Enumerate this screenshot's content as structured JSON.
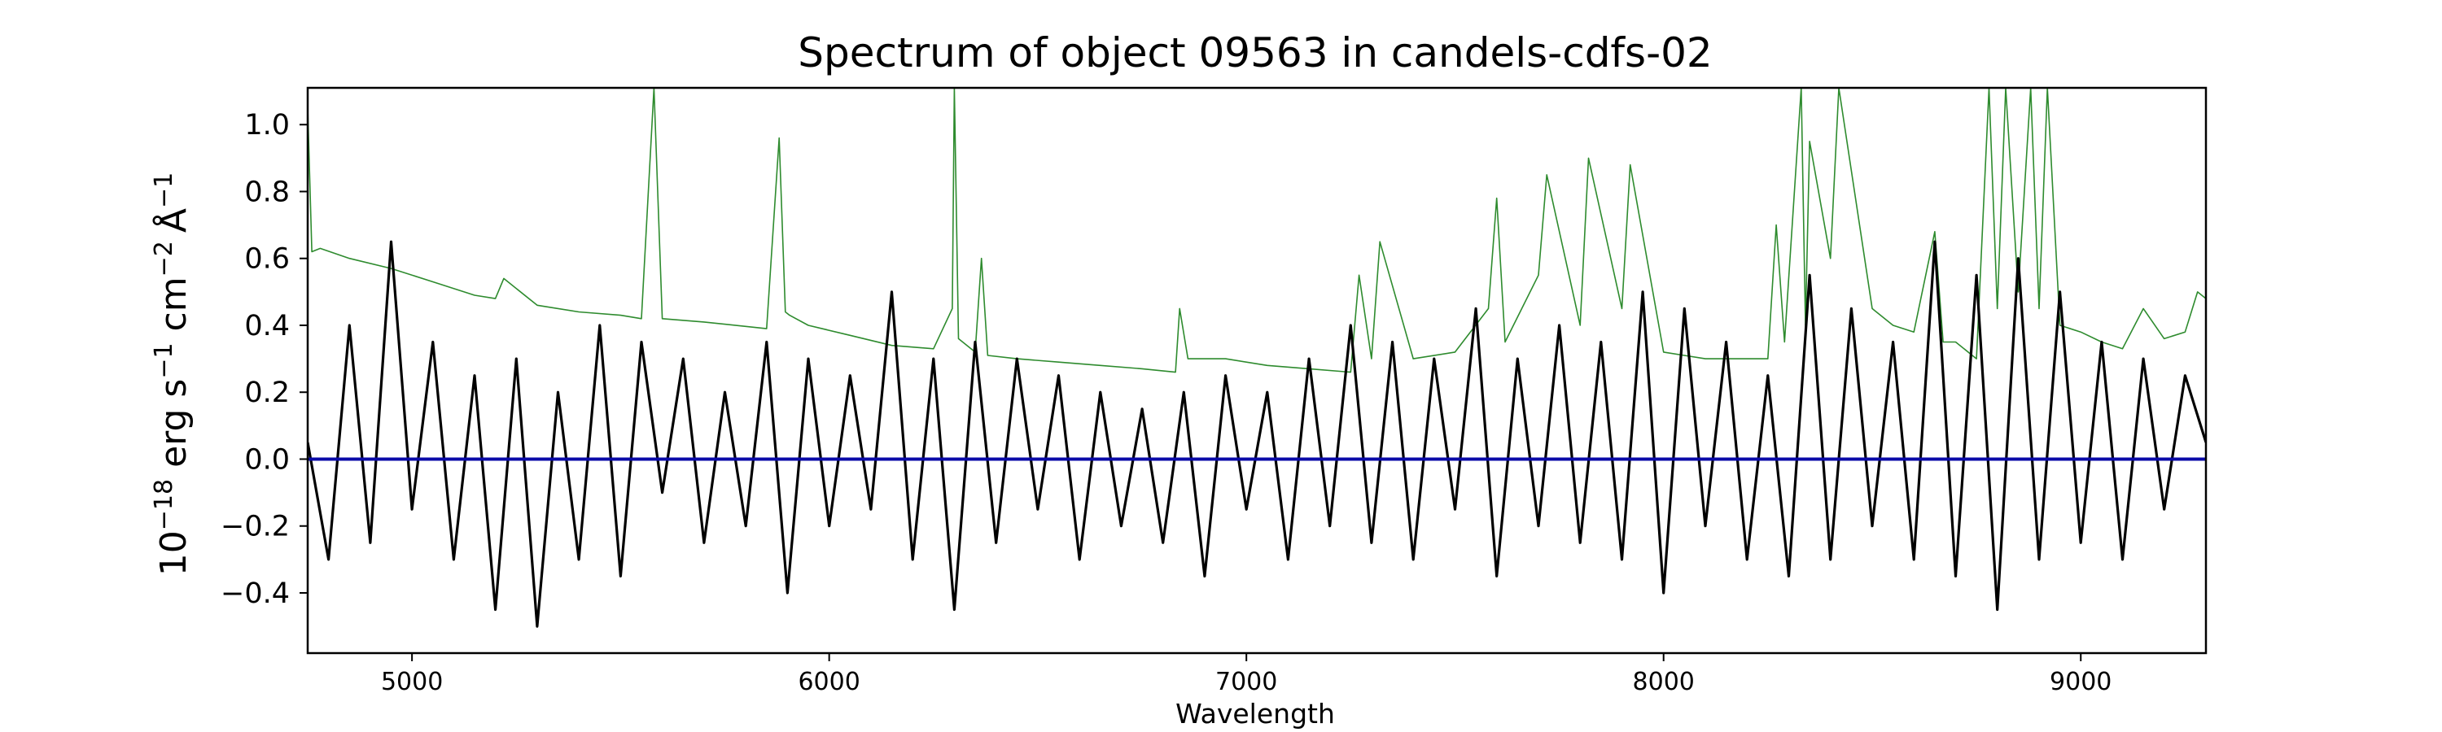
{
  "chart_data": {
    "type": "line",
    "title": "Spectrum of object 09563 in candels-cdfs-02",
    "xlabel": "Wavelength",
    "ylabel": {
      "base": "10",
      "exp": "−18",
      "unit1": "erg s",
      "unit1_exp": "−1",
      "unit2": "cm",
      "unit2_exp": "−2",
      "unit3": "Å",
      "unit3_exp": "−1"
    },
    "xlim": [
      4750,
      9300
    ],
    "ylim": [
      -0.58,
      1.11
    ],
    "xticks": [
      5000,
      6000,
      7000,
      8000,
      9000
    ],
    "xtick_labels": [
      "5000",
      "6000",
      "7000",
      "8000",
      "9000"
    ],
    "yticks": [
      -0.4,
      -0.2,
      0.0,
      0.2,
      0.4,
      0.6,
      0.8,
      1.0
    ],
    "ytick_labels": [
      "−0.4",
      "−0.2",
      "0.0",
      "0.2",
      "0.4",
      "0.6",
      "0.8",
      "1.0"
    ],
    "grid": false,
    "colors": {
      "flux": "#000000",
      "error": "#2e8b2e",
      "zero": "#0a0aa8"
    },
    "series": [
      {
        "role": "flux",
        "x": [
          4750,
          4800,
          4850,
          4900,
          4950,
          5000,
          5050,
          5100,
          5150,
          5200,
          5250,
          5300,
          5350,
          5400,
          5450,
          5500,
          5550,
          5600,
          5650,
          5700,
          5750,
          5800,
          5850,
          5900,
          5950,
          6000,
          6050,
          6100,
          6150,
          6200,
          6250,
          6300,
          6350,
          6400,
          6450,
          6500,
          6550,
          6600,
          6650,
          6700,
          6750,
          6800,
          6850,
          6900,
          6950,
          7000,
          7050,
          7100,
          7150,
          7200,
          7250,
          7300,
          7350,
          7400,
          7450,
          7500,
          7550,
          7600,
          7650,
          7700,
          7750,
          7800,
          7850,
          7900,
          7950,
          8000,
          8050,
          8100,
          8150,
          8200,
          8250,
          8300,
          8350,
          8400,
          8450,
          8500,
          8550,
          8600,
          8650,
          8700,
          8750,
          8800,
          8850,
          8900,
          8950,
          9000,
          9050,
          9100,
          9150,
          9200,
          9250,
          9300
        ],
        "y": [
          0.05,
          -0.3,
          0.4,
          -0.25,
          0.65,
          -0.15,
          0.35,
          -0.3,
          0.25,
          -0.45,
          0.3,
          -0.5,
          0.2,
          -0.3,
          0.4,
          -0.35,
          0.35,
          -0.1,
          0.3,
          -0.25,
          0.2,
          -0.2,
          0.35,
          -0.4,
          0.3,
          -0.2,
          0.25,
          -0.15,
          0.5,
          -0.3,
          0.3,
          -0.45,
          0.35,
          -0.25,
          0.3,
          -0.15,
          0.25,
          -0.3,
          0.2,
          -0.2,
          0.15,
          -0.25,
          0.2,
          -0.35,
          0.25,
          -0.15,
          0.2,
          -0.3,
          0.3,
          -0.2,
          0.4,
          -0.25,
          0.35,
          -0.3,
          0.3,
          -0.15,
          0.45,
          -0.35,
          0.3,
          -0.2,
          0.4,
          -0.25,
          0.35,
          -0.3,
          0.5,
          -0.4,
          0.45,
          -0.2,
          0.35,
          -0.3,
          0.25,
          -0.35,
          0.55,
          -0.3,
          0.45,
          -0.2,
          0.35,
          -0.3,
          0.65,
          -0.35,
          0.55,
          -0.45,
          0.6,
          -0.3,
          0.5,
          -0.25,
          0.35,
          -0.3,
          0.3,
          -0.15,
          0.25,
          0.05
        ]
      },
      {
        "role": "error",
        "x": [
          4750,
          4760,
          4780,
          4850,
          4950,
          5050,
          5150,
          5200,
          5220,
          5300,
          5400,
          5500,
          5550,
          5580,
          5600,
          5700,
          5850,
          5880,
          5895,
          5905,
          5950,
          6050,
          6150,
          6250,
          6295,
          6300,
          6310,
          6350,
          6365,
          6380,
          6450,
          6550,
          6650,
          6750,
          6830,
          6840,
          6860,
          6950,
          7050,
          7150,
          7250,
          7270,
          7300,
          7320,
          7400,
          7500,
          7580,
          7600,
          7620,
          7700,
          7720,
          7800,
          7820,
          7900,
          7920,
          8000,
          8050,
          8100,
          8150,
          8250,
          8270,
          8290,
          8330,
          8340,
          8350,
          8400,
          8420,
          8500,
          8550,
          8600,
          8650,
          8670,
          8700,
          8750,
          8780,
          8800,
          8820,
          8850,
          8880,
          8900,
          8920,
          8950,
          9000,
          9050,
          9100,
          9150,
          9200,
          9250,
          9280,
          9300
        ],
        "y": [
          1.05,
          0.62,
          0.63,
          0.6,
          0.57,
          0.53,
          0.49,
          0.48,
          0.54,
          0.46,
          0.44,
          0.43,
          0.42,
          1.11,
          0.42,
          0.41,
          0.39,
          0.96,
          0.44,
          0.43,
          0.4,
          0.37,
          0.34,
          0.33,
          0.45,
          1.11,
          0.36,
          0.32,
          0.6,
          0.31,
          0.3,
          0.29,
          0.28,
          0.27,
          0.26,
          0.45,
          0.3,
          0.3,
          0.28,
          0.27,
          0.26,
          0.55,
          0.3,
          0.65,
          0.3,
          0.32,
          0.45,
          0.78,
          0.35,
          0.55,
          0.85,
          0.4,
          0.9,
          0.45,
          0.88,
          0.32,
          0.31,
          0.3,
          0.3,
          0.3,
          0.7,
          0.35,
          1.11,
          0.4,
          0.95,
          0.6,
          1.11,
          0.45,
          0.4,
          0.38,
          0.68,
          0.35,
          0.35,
          0.3,
          1.11,
          0.45,
          1.11,
          0.5,
          1.11,
          0.45,
          1.11,
          0.4,
          0.38,
          0.35,
          0.33,
          0.45,
          0.36,
          0.38,
          0.5,
          0.48
        ]
      },
      {
        "role": "zero",
        "x": [
          4750,
          9300
        ],
        "y": [
          0,
          0
        ]
      }
    ]
  }
}
